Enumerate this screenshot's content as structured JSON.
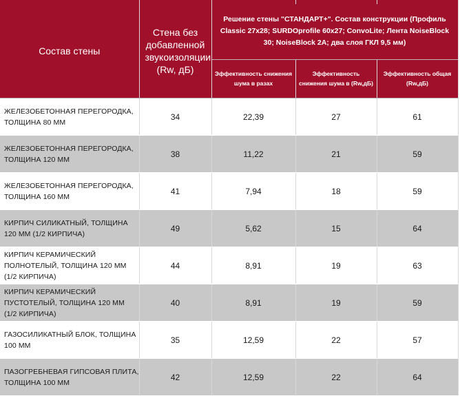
{
  "header": {
    "col_composition": "Состав стены",
    "col_baseline": "Стена без добавленной звукоизоляции (Rw, дБ)",
    "group_title": "Решение стены \"СТАНДАРТ+\". Состав конструкции (Профиль Classic 27x28; SURDOprofile 60x27; ConvoLite; Лента NoiseBlock 30; NoiseBlock 2А; два слоя ГКЛ 9,5 мм)",
    "sub_times": "Эффективность снижения шума в разах",
    "sub_rw": "Эффективность снижения шума в (Rw,дБ)",
    "sub_total": "Эффективность общая (Rw,дБ)"
  },
  "rows": [
    {
      "name": "ЖЕЛЕЗОБЕТОННАЯ ПЕРЕГОРОДКА, ТОЛЩИНА 80 ММ",
      "baseline": "34",
      "times": "22,39",
      "rw": "27",
      "total": "61"
    },
    {
      "name": "ЖЕЛЕЗОБЕТОННАЯ ПЕРЕГОРОДКА, ТОЛЩИНА 120 ММ",
      "baseline": "38",
      "times": "11,22",
      "rw": "21",
      "total": "59"
    },
    {
      "name": "ЖЕЛЕЗОБЕТОННАЯ ПЕРЕГОРОДКА, ТОЛЩИНА 160 ММ",
      "baseline": "41",
      "times": "7,94",
      "rw": "18",
      "total": "59"
    },
    {
      "name": "КИРПИЧ СИЛИКАТНЫЙ, ТОЛЩИНА 120 ММ (1/2 КИРПИЧА)",
      "baseline": "49",
      "times": "5,62",
      "rw": "15",
      "total": "64"
    },
    {
      "name": "КИРПИЧ КЕРАМИЧЕСКИЙ ПОЛНОТЕЛЫЙ, ТОЛЩИНА 120 ММ (1/2 КИРПИЧА)",
      "baseline": "44",
      "times": "8,91",
      "rw": "19",
      "total": "63"
    },
    {
      "name": "КИРПИЧ КЕРАМИЧЕСКИЙ ПУСТОТЕЛЫЙ, ТОЛЩИНА 120 ММ (1/2 КИРПИЧА)",
      "baseline": "40",
      "times": "8,91",
      "rw": "19",
      "total": "59"
    },
    {
      "name": "ГАЗОСИЛИКАТНЫЙ БЛОК, ТОЛЩИНА 100 ММ",
      "baseline": "35",
      "times": "12,59",
      "rw": "22",
      "total": "57"
    },
    {
      "name": "ПАЗОГРЕБНЕВАЯ ГИПСОВАЯ ПЛИТА, ТОЛЩИНА 100 ММ",
      "baseline": "42",
      "times": "12,59",
      "rw": "22",
      "total": "64"
    }
  ],
  "colors": {
    "header_bg": "#a0102a",
    "shade_row": "#c8c8c8"
  }
}
